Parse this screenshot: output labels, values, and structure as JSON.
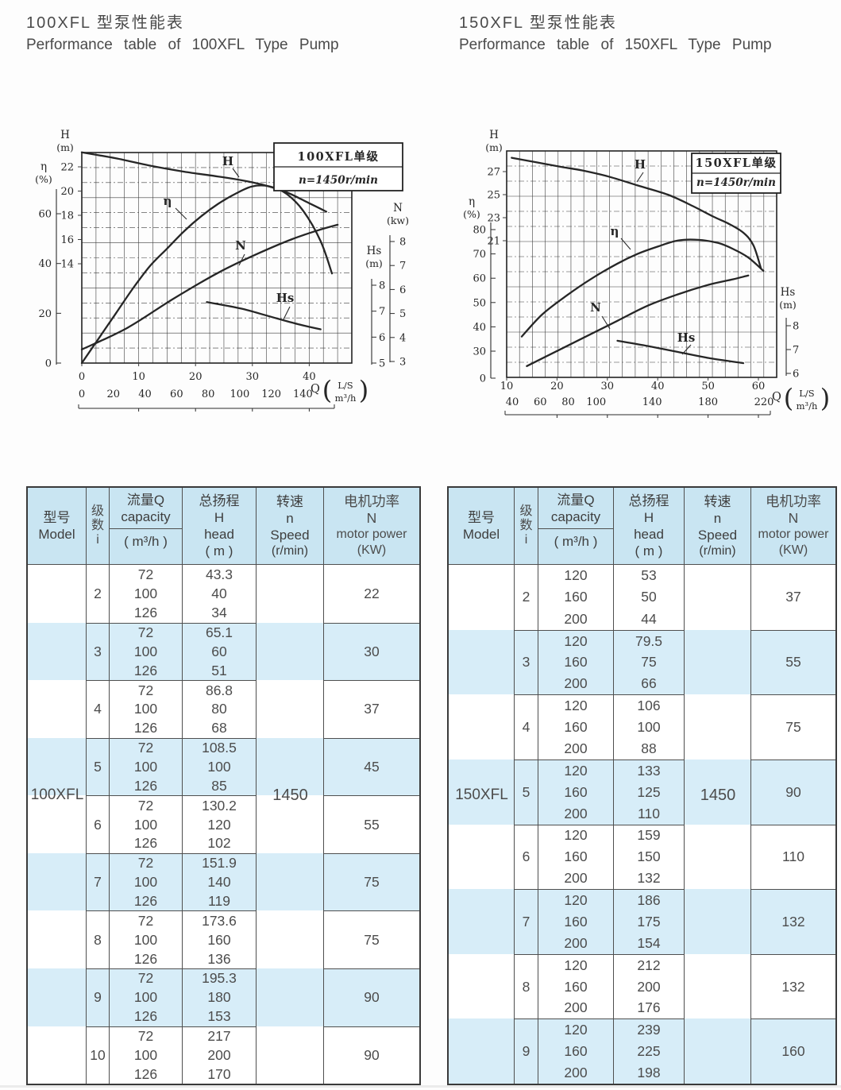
{
  "sections": [
    {
      "title_zh": "100XFL 型泵性能表",
      "title_en": "Performance table of 100XFL Type Pump"
    },
    {
      "title_zh": "150XFL 型泵性能表",
      "title_en": "Performance table of 150XFL Type Pump"
    }
  ],
  "chart_data": [
    {
      "type": "line",
      "title": "100XFL单级",
      "subtitle": "n=1450r/min",
      "x_axis": {
        "label": "Q",
        "unit_top": "L/S",
        "unit_bottom": "m³/h",
        "ls_ticks": [
          "0",
          "10",
          "20",
          "30",
          "40"
        ],
        "m3h_ticks": [
          "0",
          "20",
          "40",
          "60",
          "80",
          "100",
          "120",
          "140"
        ]
      },
      "y_axes": {
        "H": {
          "label": "H",
          "unit": "(m)",
          "ticks": [
            "22",
            "20",
            "18",
            "16",
            "14"
          ]
        },
        "eta": {
          "label": "η",
          "unit": "(%)",
          "ticks": [
            "60",
            "40",
            "20",
            "0"
          ]
        },
        "N": {
          "label": "N",
          "unit": "(kw)",
          "ticks": [
            "8",
            "7",
            "6",
            "5",
            "4",
            "3"
          ]
        },
        "Hs": {
          "label": "Hs",
          "unit": "(m)",
          "ticks": [
            "8",
            "7",
            "6",
            "5"
          ]
        }
      },
      "series": [
        {
          "name": "H",
          "axis": "H",
          "points": [
            [
              0,
              23.2
            ],
            [
              6,
              22.7
            ],
            [
              12,
              22.1
            ],
            [
              18,
              21.6
            ],
            [
              24,
              21.2
            ],
            [
              28,
              20.9
            ],
            [
              32,
              20.5
            ],
            [
              36,
              19.9
            ],
            [
              40,
              19.0
            ],
            [
              43,
              18.3
            ]
          ]
        },
        {
          "name": "η",
          "axis": "eta",
          "points": [
            [
              0,
              0
            ],
            [
              3,
              10
            ],
            [
              6,
              20
            ],
            [
              9,
              30
            ],
            [
              12,
              39
            ],
            [
              15,
              46
            ],
            [
              18,
              53
            ],
            [
              21,
              59
            ],
            [
              24,
              64
            ],
            [
              27,
              68
            ],
            [
              30,
              71
            ],
            [
              33,
              71
            ],
            [
              36,
              68
            ],
            [
              39,
              61
            ],
            [
              42,
              49
            ],
            [
              44,
              36
            ]
          ]
        },
        {
          "name": "N",
          "axis": "N",
          "points": [
            [
              0,
              3.5
            ],
            [
              8,
              4.4
            ],
            [
              16,
              5.6
            ],
            [
              24,
              6.7
            ],
            [
              31,
              7.5
            ],
            [
              37,
              8.1
            ],
            [
              42,
              8.5
            ],
            [
              45,
              8.7
            ]
          ]
        },
        {
          "name": "Hs",
          "axis": "Hs",
          "points": [
            [
              22,
              7.35
            ],
            [
              28,
              7.1
            ],
            [
              33,
              6.8
            ],
            [
              38,
              6.5
            ],
            [
              42,
              6.3
            ]
          ]
        }
      ]
    },
    {
      "type": "line",
      "title": "150XFL单级",
      "subtitle": "n=1450r/min",
      "x_axis": {
        "label": "Q",
        "unit_top": "L/S",
        "unit_bottom": "m³/h",
        "ls_ticks": [
          "10",
          "20",
          "30",
          "40",
          "50",
          "60"
        ],
        "m3h_ticks": [
          "40",
          "60",
          "80",
          "100",
          "140",
          "180",
          "220"
        ]
      },
      "y_axes": {
        "H": {
          "label": "H",
          "unit": "(m)",
          "ticks": [
            "27",
            "25",
            "23",
            "21"
          ]
        },
        "eta": {
          "label": "η",
          "unit": "(%)",
          "ticks": [
            "80",
            "70",
            "60",
            "50",
            "40",
            "30",
            "0"
          ]
        },
        "Hs": {
          "label": "Hs",
          "unit": "(m)",
          "ticks": [
            "8",
            "7",
            "6"
          ]
        }
      },
      "series": [
        {
          "name": "H",
          "axis": "H",
          "points": [
            [
              11,
              28.2
            ],
            [
              16,
              27.8
            ],
            [
              21,
              27.4
            ],
            [
              25,
              27.1
            ],
            [
              30,
              26.6
            ],
            [
              36,
              25.8
            ],
            [
              42,
              25.0
            ],
            [
              47,
              24.0
            ],
            [
              51,
              23.1
            ],
            [
              54,
              22.5
            ],
            [
              57,
              21.7
            ],
            [
              59,
              20.6
            ],
            [
              60.5,
              18.6
            ]
          ]
        },
        {
          "name": "η",
          "axis": "eta",
          "points": [
            [
              13,
              36
            ],
            [
              17,
              45
            ],
            [
              22,
              53
            ],
            [
              27,
              60
            ],
            [
              32,
              66
            ],
            [
              36,
              70
            ],
            [
              40,
              73
            ],
            [
              44,
              75.5
            ],
            [
              48,
              75.8
            ],
            [
              52,
              74.5
            ],
            [
              55,
              72
            ],
            [
              58,
              68.5
            ],
            [
              61,
              63
            ]
          ]
        },
        {
          "name": "N",
          "axis": "N",
          "points": [
            [
              14,
              8.6
            ],
            [
              20,
              9.4
            ],
            [
              26,
              10.2
            ],
            [
              32,
              11.0
            ],
            [
              38,
              11.8
            ],
            [
              44,
              12.4
            ],
            [
              50,
              12.9
            ],
            [
              55,
              13.2
            ],
            [
              58,
              13.4
            ]
          ]
        },
        {
          "name": "Hs",
          "axis": "Hs",
          "points": [
            [
              32,
              7.37
            ],
            [
              38,
              7.15
            ],
            [
              44,
              6.9
            ],
            [
              50,
              6.65
            ],
            [
              57,
              6.43
            ]
          ]
        }
      ]
    }
  ],
  "table_header": {
    "model_zh": "型号",
    "model_en": "Model",
    "stage_l1": "级",
    "stage_l2": "数",
    "stage_l3": "i",
    "cap_zh": "流量Q",
    "cap_en": "capacity",
    "cap_unit": "( m³/h )",
    "head_zh": "总扬程",
    "head_sym": "H",
    "head_en": "head",
    "head_unit": "( m )",
    "speed_zh": "转速",
    "speed_sym": "n",
    "speed_en": "Speed",
    "speed_unit": "(r/min)",
    "power_zh": "电机功率",
    "power_sym": "N",
    "power_en": "motor power",
    "power_unit": "(KW)"
  },
  "tables": [
    {
      "model": "100XFL",
      "speed": "1450",
      "rows": [
        {
          "i": "2",
          "q": [
            "72",
            "100",
            "126"
          ],
          "h": [
            "43.3",
            "40",
            "34"
          ],
          "power": "22"
        },
        {
          "i": "3",
          "q": [
            "72",
            "100",
            "126"
          ],
          "h": [
            "65.1",
            "60",
            "51"
          ],
          "power": "30"
        },
        {
          "i": "4",
          "q": [
            "72",
            "100",
            "126"
          ],
          "h": [
            "86.8",
            "80",
            "68"
          ],
          "power": "37"
        },
        {
          "i": "5",
          "q": [
            "72",
            "100",
            "126"
          ],
          "h": [
            "108.5",
            "100",
            "85"
          ],
          "power": "45"
        },
        {
          "i": "6",
          "q": [
            "72",
            "100",
            "126"
          ],
          "h": [
            "130.2",
            "120",
            "102"
          ],
          "power": "55"
        },
        {
          "i": "7",
          "q": [
            "72",
            "100",
            "126"
          ],
          "h": [
            "151.9",
            "140",
            "119"
          ],
          "power": "75"
        },
        {
          "i": "8",
          "q": [
            "72",
            "100",
            "126"
          ],
          "h": [
            "173.6",
            "160",
            "136"
          ],
          "power": "75"
        },
        {
          "i": "9",
          "q": [
            "72",
            "100",
            "126"
          ],
          "h": [
            "195.3",
            "180",
            "153"
          ],
          "power": "90"
        },
        {
          "i": "10",
          "q": [
            "72",
            "100",
            "126"
          ],
          "h": [
            "217",
            "200",
            "170"
          ],
          "power": "90"
        }
      ]
    },
    {
      "model": "150XFL",
      "speed": "1450",
      "rows": [
        {
          "i": "2",
          "q": [
            "120",
            "160",
            "200"
          ],
          "h": [
            "53",
            "50",
            "44"
          ],
          "power": "37"
        },
        {
          "i": "3",
          "q": [
            "120",
            "160",
            "200"
          ],
          "h": [
            "79.5",
            "75",
            "66"
          ],
          "power": "55"
        },
        {
          "i": "4",
          "q": [
            "120",
            "160",
            "200"
          ],
          "h": [
            "106",
            "100",
            "88"
          ],
          "power": "75"
        },
        {
          "i": "5",
          "q": [
            "120",
            "160",
            "200"
          ],
          "h": [
            "133",
            "125",
            "110"
          ],
          "power": "90"
        },
        {
          "i": "6",
          "q": [
            "120",
            "160",
            "200"
          ],
          "h": [
            "159",
            "150",
            "132"
          ],
          "power": "110"
        },
        {
          "i": "7",
          "q": [
            "120",
            "160",
            "200"
          ],
          "h": [
            "186",
            "175",
            "154"
          ],
          "power": "132"
        },
        {
          "i": "8",
          "q": [
            "120",
            "160",
            "200"
          ],
          "h": [
            "212",
            "200",
            "176"
          ],
          "power": "132"
        },
        {
          "i": "9",
          "q": [
            "120",
            "160",
            "200"
          ],
          "h": [
            "239",
            "225",
            "198"
          ],
          "power": "160"
        }
      ]
    }
  ]
}
